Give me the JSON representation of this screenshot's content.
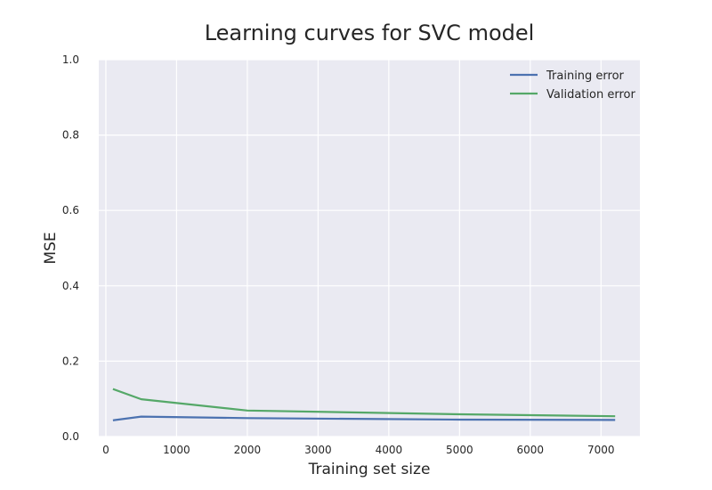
{
  "chart_data": {
    "type": "line",
    "title": "Learning curves for SVC model",
    "xlabel": "Training set size",
    "ylabel": "MSE",
    "xlim": [
      -100,
      7550
    ],
    "ylim": [
      0.0,
      1.0
    ],
    "x_ticks": [
      0,
      1000,
      2000,
      3000,
      4000,
      5000,
      6000,
      7000
    ],
    "x_tick_labels": [
      "0",
      "1000",
      "2000",
      "3000",
      "4000",
      "5000",
      "6000",
      "7000"
    ],
    "y_ticks": [
      0.0,
      0.2,
      0.4,
      0.6,
      0.8,
      1.0
    ],
    "y_tick_labels": [
      "0.0",
      "0.2",
      "0.4",
      "0.6",
      "0.8",
      "1.0"
    ],
    "grid": true,
    "legend_position": "top-right",
    "x": [
      100,
      500,
      2000,
      5000,
      7200
    ],
    "series": [
      {
        "name": "Training error",
        "color": "#4c72b0",
        "values": [
          0.043,
          0.053,
          0.049,
          0.045,
          0.044
        ]
      },
      {
        "name": "Validation error",
        "color": "#55a868",
        "values": [
          0.126,
          0.099,
          0.069,
          0.059,
          0.054
        ]
      }
    ]
  },
  "style": {
    "plot_background": "#eaeaf2",
    "grid_color": "#ffffff"
  }
}
